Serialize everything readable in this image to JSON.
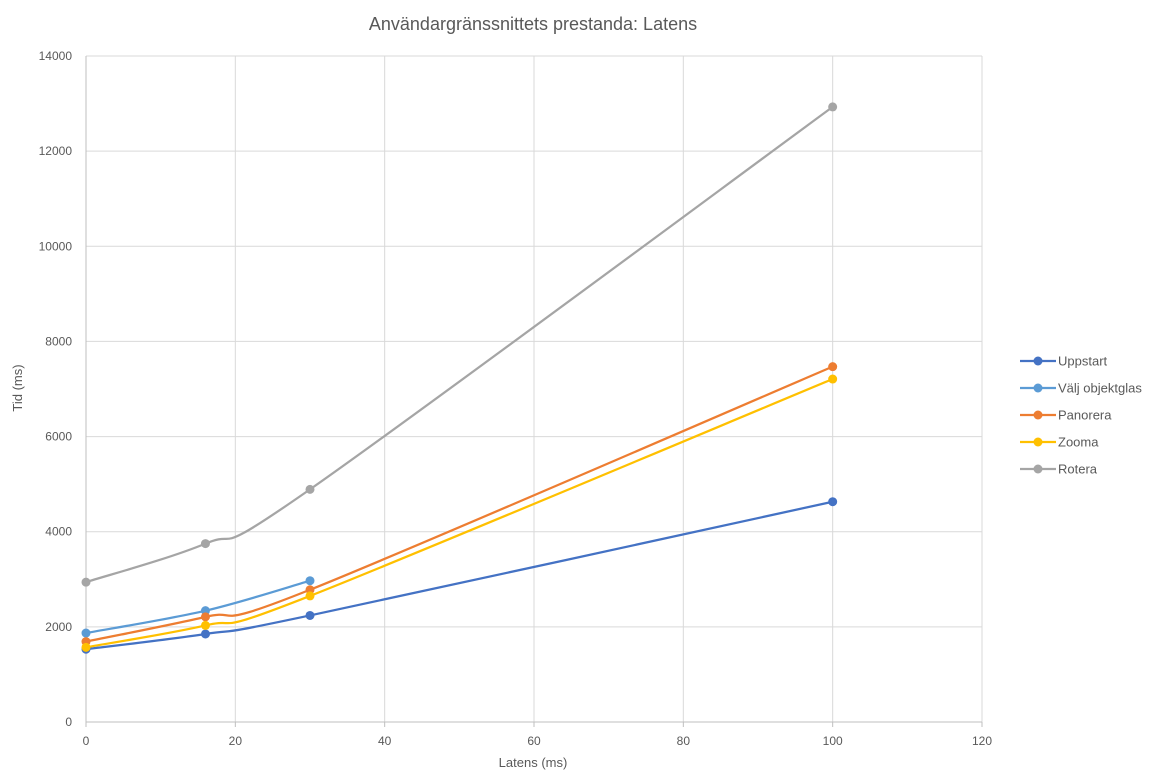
{
  "chart_data": {
    "type": "line",
    "title": "Användargränssnittets prestanda: Latens",
    "xlabel": "Latens (ms)",
    "ylabel": "Tid (ms)",
    "xlim": [
      0,
      120
    ],
    "ylim": [
      0,
      14000
    ],
    "x_ticks": [
      0,
      20,
      40,
      60,
      80,
      100,
      120
    ],
    "y_ticks": [
      0,
      2000,
      4000,
      6000,
      8000,
      10000,
      12000,
      14000
    ],
    "grid": true,
    "smooth": true,
    "legend_position": "right",
    "series": [
      {
        "name": "Uppstart",
        "color": "#4472c4",
        "x": [
          0,
          16,
          30,
          100
        ],
        "y": [
          1530,
          1850,
          2240,
          4630
        ]
      },
      {
        "name": "Välj objektglas",
        "color": "#5b9bd5",
        "x": [
          0,
          16,
          30
        ],
        "y": [
          1870,
          2340,
          2970
        ]
      },
      {
        "name": "Panorera",
        "color": "#ed7d31",
        "x": [
          0,
          16,
          30,
          100
        ],
        "y": [
          1690,
          2210,
          2780,
          7470
        ]
      },
      {
        "name": "Zooma",
        "color": "#ffc000",
        "x": [
          0,
          16,
          30,
          100
        ],
        "y": [
          1570,
          2030,
          2650,
          7210
        ]
      },
      {
        "name": "Rotera",
        "color": "#a5a5a5",
        "x": [
          0,
          16,
          30,
          100
        ],
        "y": [
          2940,
          3750,
          4890,
          12930
        ]
      }
    ]
  }
}
